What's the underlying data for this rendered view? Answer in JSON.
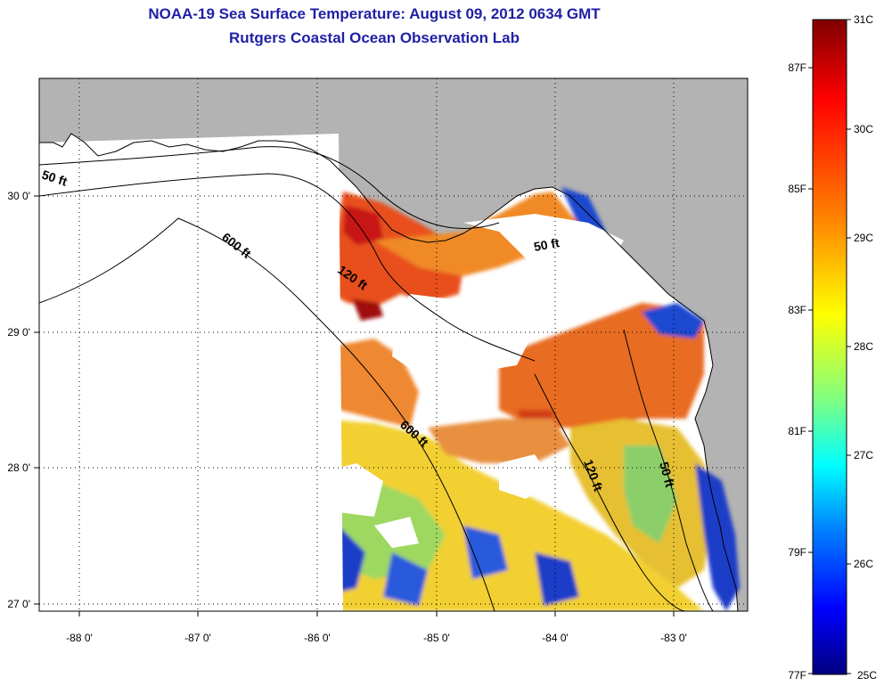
{
  "title": {
    "line1": "NOAA-19 Sea Surface Temperature:  August 09, 2012 0634 GMT",
    "line2": "Rutgers Coastal Ocean Observation Lab"
  },
  "map": {
    "lon_ticks": [
      "-88 0'",
      "-87 0'",
      "-86 0'",
      "-85 0'",
      "-84 0'",
      "-83 0'"
    ],
    "lat_ticks": [
      "30 0'",
      "29 0'",
      "28 0'",
      "27 0'"
    ],
    "contour_labels": [
      "50 ft",
      "600 ft",
      "120 ft",
      "50 ft",
      "600 ft",
      "120 ft",
      "50 ft"
    ],
    "colors": {
      "land": "#b3b3b3",
      "cloud": "#ffffff",
      "contour": "#000000"
    }
  },
  "colorbar": {
    "celsius": [
      "31C",
      "30C",
      "29C",
      "28C",
      "27C",
      "26C",
      "25C"
    ],
    "fahrenheit": [
      "87F",
      "85F",
      "83F",
      "81F",
      "79F",
      "77F"
    ],
    "stops": [
      "#7f0000",
      "#ff0000",
      "#ff8000",
      "#ffff00",
      "#80ff80",
      "#00ffff",
      "#0080ff",
      "#0000ff",
      "#00007f"
    ]
  }
}
